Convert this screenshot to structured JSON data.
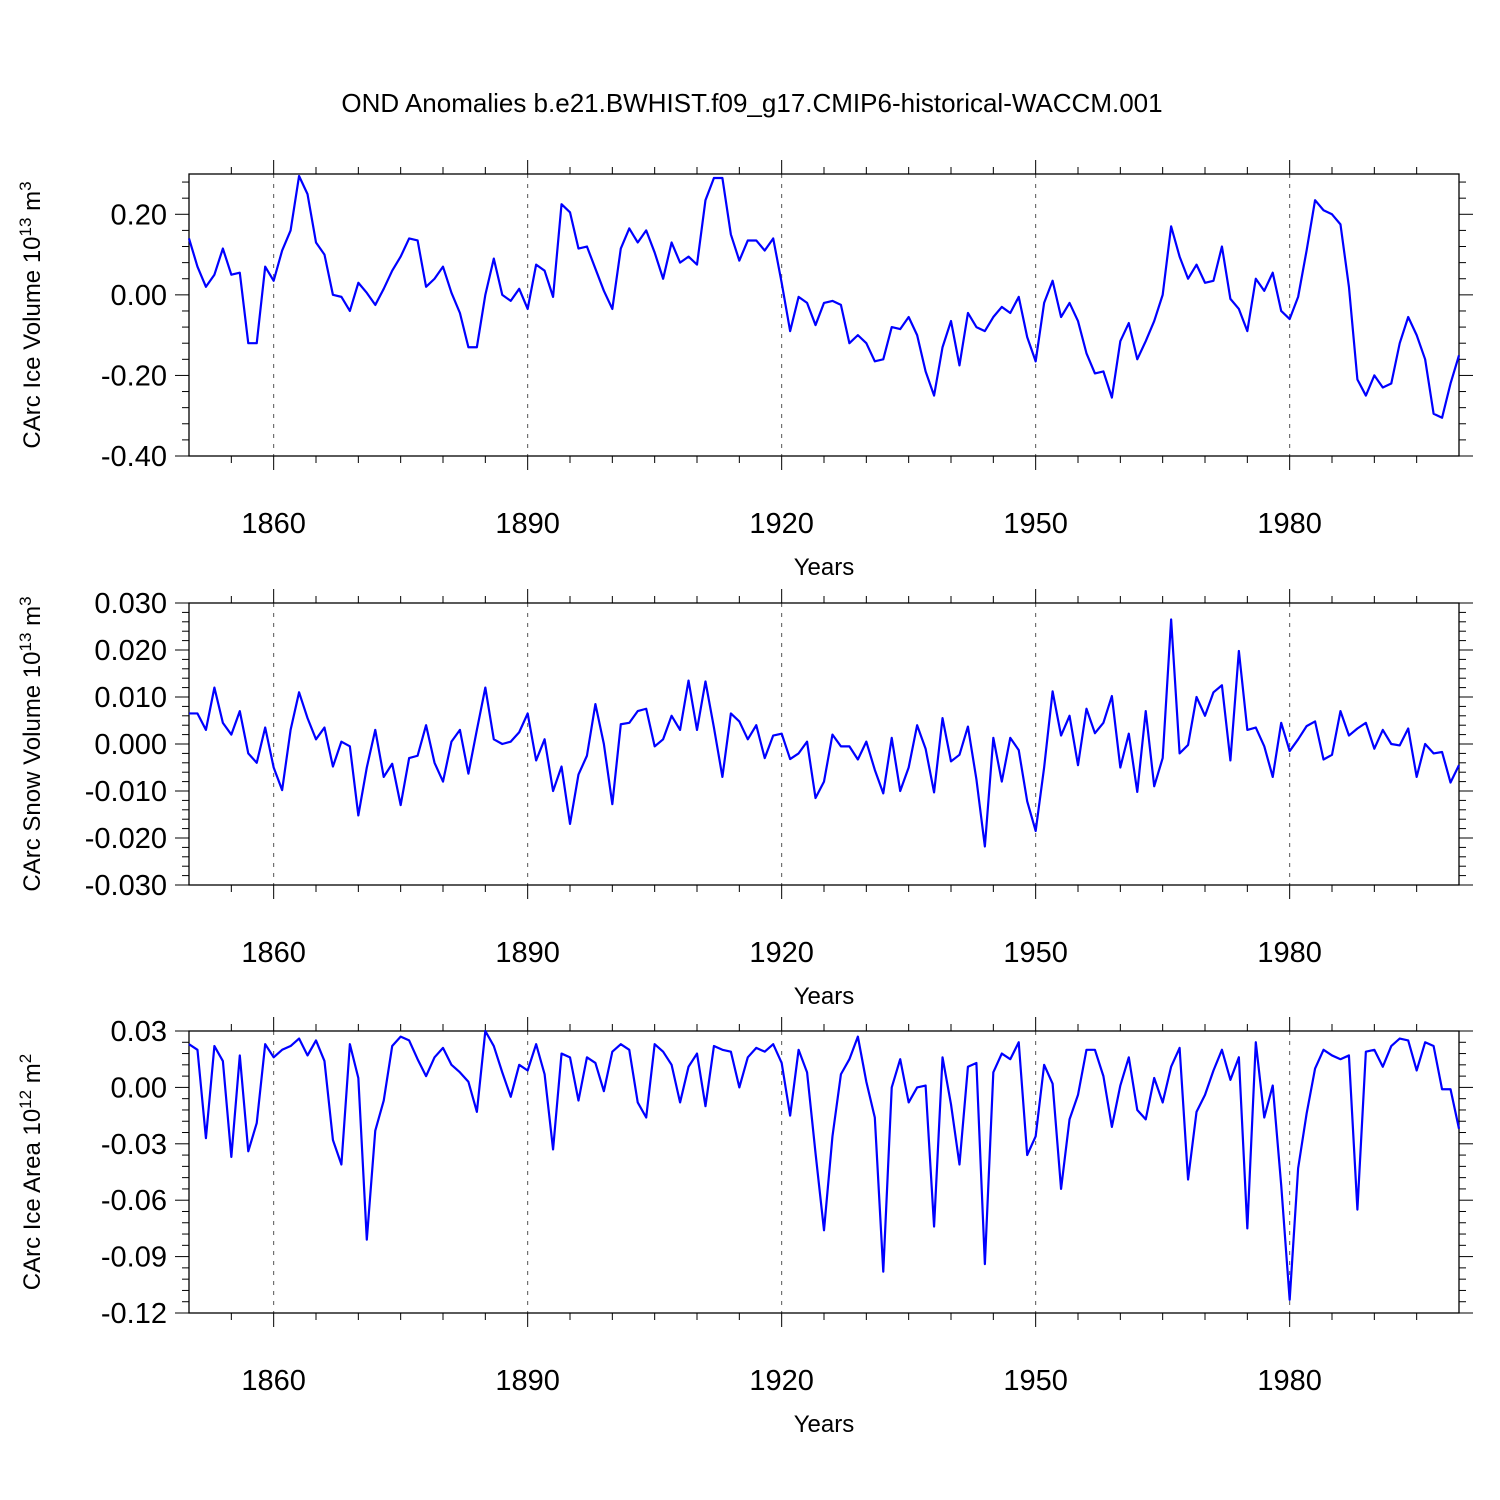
{
  "title": "OND Anomalies b.e21.BWHIST.f09_g17.CMIP6-historical-WACCM.001",
  "chart_data": [
    {
      "type": "line",
      "title": "OND Anomalies b.e21.BWHIST.f09_g17.CMIP6-historical-WACCM.001",
      "xlabel": "Years",
      "ylabel": {
        "base": "CArc Ice Volume 10",
        "exp": "13",
        "unit": " m",
        "unit_exp": "3"
      },
      "xlim": [
        1850,
        2000
      ],
      "ylim": [
        -0.4,
        0.3
      ],
      "yticks": [
        0.2,
        0.0,
        -0.2,
        -0.4
      ],
      "ytick_labels": [
        "0.20",
        "0.00",
        "-0.20",
        "-0.40"
      ],
      "xticks": [
        1860,
        1890,
        1920,
        1950,
        1980
      ],
      "xtick_labels": [
        "1860",
        "1890",
        "1920",
        "1950",
        "1980"
      ],
      "grid": "dashed vertical at x ticks",
      "color": "#0000ff",
      "x_start": 1850,
      "values": [
        0.14,
        0.07,
        0.02,
        0.05,
        0.115,
        0.05,
        0.055,
        -0.12,
        -0.12,
        0.07,
        0.035,
        0.11,
        0.16,
        0.295,
        0.25,
        0.13,
        0.1,
        0.0,
        -0.005,
        -0.04,
        0.03,
        0.005,
        -0.025,
        0.015,
        0.06,
        0.095,
        0.14,
        0.135,
        0.02,
        0.04,
        0.07,
        0.005,
        -0.045,
        -0.13,
        -0.13,
        0.0,
        0.09,
        0.0,
        -0.015,
        0.015,
        -0.035,
        0.075,
        0.06,
        -0.005,
        0.225,
        0.205,
        0.115,
        0.12,
        0.065,
        0.01,
        -0.035,
        0.115,
        0.165,
        0.13,
        0.16,
        0.105,
        0.04,
        0.13,
        0.08,
        0.095,
        0.075,
        0.235,
        0.29,
        0.29,
        0.15,
        0.085,
        0.135,
        0.135,
        0.11,
        0.14,
        0.03,
        -0.09,
        -0.005,
        -0.02,
        -0.075,
        -0.02,
        -0.015,
        -0.025,
        -0.12,
        -0.1,
        -0.12,
        -0.165,
        -0.16,
        -0.08,
        -0.085,
        -0.055,
        -0.1,
        -0.19,
        -0.25,
        -0.13,
        -0.065,
        -0.175,
        -0.045,
        -0.08,
        -0.09,
        -0.055,
        -0.03,
        -0.045,
        -0.005,
        -0.105,
        -0.165,
        -0.02,
        0.035,
        -0.055,
        -0.02,
        -0.065,
        -0.145,
        -0.195,
        -0.19,
        -0.255,
        -0.115,
        -0.07,
        -0.16,
        -0.115,
        -0.065,
        0.0,
        0.17,
        0.095,
        0.04,
        0.075,
        0.03,
        0.035,
        0.12,
        -0.01,
        -0.035,
        -0.09,
        0.04,
        0.01,
        0.055,
        -0.04,
        -0.06,
        -0.005,
        0.11,
        0.235,
        0.21,
        0.2,
        0.175,
        0.02,
        -0.21,
        -0.25,
        -0.2,
        -0.23,
        -0.22,
        -0.12,
        -0.055,
        -0.1,
        -0.16,
        -0.295,
        -0.305,
        -0.22,
        -0.15
      ]
    },
    {
      "type": "line",
      "xlabel": "Years",
      "ylabel": {
        "base": "CArc Snow Volume 10",
        "exp": "13",
        "unit": " m",
        "unit_exp": "3"
      },
      "xlim": [
        1850,
        2000
      ],
      "ylim": [
        -0.03,
        0.03
      ],
      "yticks": [
        0.03,
        0.02,
        0.01,
        0.0,
        -0.01,
        -0.02,
        -0.03
      ],
      "ytick_labels": [
        "0.030",
        "0.020",
        "0.010",
        "0.000",
        "-0.010",
        "-0.020",
        "-0.030"
      ],
      "xticks": [
        1860,
        1890,
        1920,
        1950,
        1980
      ],
      "xtick_labels": [
        "1860",
        "1890",
        "1920",
        "1950",
        "1980"
      ],
      "grid": "dashed vertical at x ticks",
      "color": "#0000ff",
      "x_start": 1850,
      "values": [
        0.0065,
        0.0065,
        0.003,
        0.012,
        0.0045,
        0.002,
        0.007,
        -0.002,
        -0.004,
        0.0035,
        -0.005,
        -0.0098,
        0.003,
        0.011,
        0.0055,
        0.001,
        0.0035,
        -0.0048,
        0.0005,
        -0.0005,
        -0.0152,
        -0.005,
        0.003,
        -0.007,
        -0.0042,
        -0.013,
        -0.003,
        -0.0025,
        0.004,
        -0.004,
        -0.008,
        0.0005,
        0.003,
        -0.0063,
        0.003,
        0.012,
        0.001,
        0.0,
        0.0005,
        0.0025,
        0.0065,
        -0.0035,
        0.001,
        -0.01,
        -0.0048,
        -0.017,
        -0.0065,
        -0.0025,
        0.0085,
        0.0,
        -0.0128,
        0.0042,
        0.0045,
        0.007,
        0.0075,
        -0.0005,
        0.001,
        0.006,
        0.003,
        0.0135,
        0.003,
        0.0133,
        0.0035,
        -0.007,
        0.0065,
        0.0048,
        0.001,
        0.004,
        -0.003,
        0.0018,
        0.0022,
        -0.0032,
        -0.002,
        0.0005,
        -0.0115,
        -0.008,
        0.002,
        -0.0005,
        -0.0005,
        -0.0033,
        0.0005,
        -0.0055,
        -0.0105,
        0.0013,
        -0.01,
        -0.005,
        0.004,
        -0.001,
        -0.0103,
        0.0055,
        -0.0037,
        -0.0023,
        0.0037,
        -0.0075,
        -0.0218,
        0.0013,
        -0.008,
        0.0013,
        -0.0013,
        -0.0122,
        -0.0185,
        -0.005,
        0.0112,
        0.0018,
        0.006,
        -0.0045,
        0.0075,
        0.0023,
        0.0045,
        0.0102,
        -0.005,
        0.0022,
        -0.0102,
        0.007,
        -0.009,
        -0.003,
        0.0265,
        -0.002,
        -0.0002,
        0.01,
        0.006,
        0.011,
        0.0125,
        -0.0035,
        0.0198,
        0.003,
        0.0035,
        -0.0005,
        -0.007,
        0.0045,
        -0.0015,
        0.001,
        0.0038,
        0.0048,
        -0.0033,
        -0.0023,
        0.007,
        0.0018,
        0.0033,
        0.0045,
        -0.001,
        0.003,
        0.0,
        -0.0003,
        0.0033,
        -0.007,
        0.0,
        -0.002,
        -0.0017,
        -0.0082,
        -0.0045
      ]
    },
    {
      "type": "line",
      "xlabel": "Years",
      "ylabel": {
        "base": "CArc Ice Area 10",
        "exp": "12",
        "unit": " m",
        "unit_exp": "2"
      },
      "xlim": [
        1850,
        2000
      ],
      "ylim": [
        -0.12,
        0.03
      ],
      "yticks": [
        0.03,
        0.0,
        -0.03,
        -0.06,
        -0.09,
        -0.12
      ],
      "ytick_labels": [
        "0.03",
        "0.00",
        "-0.03",
        "-0.06",
        "-0.09",
        "-0.12"
      ],
      "xticks": [
        1860,
        1890,
        1920,
        1950,
        1980
      ],
      "xtick_labels": [
        "1860",
        "1890",
        "1920",
        "1950",
        "1980"
      ],
      "grid": "dashed vertical at x ticks",
      "color": "#0000ff",
      "x_start": 1850,
      "values": [
        0.023,
        0.02,
        -0.027,
        0.022,
        0.014,
        -0.037,
        0.017,
        -0.034,
        -0.019,
        0.023,
        0.016,
        0.02,
        0.022,
        0.026,
        0.017,
        0.025,
        0.014,
        -0.028,
        -0.041,
        0.023,
        0.005,
        -0.081,
        -0.023,
        -0.007,
        0.022,
        0.027,
        0.025,
        0.015,
        0.006,
        0.016,
        0.021,
        0.012,
        0.008,
        0.003,
        -0.013,
        0.03,
        0.022,
        0.008,
        -0.005,
        0.012,
        0.009,
        0.023,
        0.007,
        -0.033,
        0.018,
        0.016,
        -0.007,
        0.016,
        0.013,
        -0.002,
        0.019,
        0.023,
        0.02,
        -0.008,
        -0.016,
        0.023,
        0.019,
        0.012,
        -0.008,
        0.011,
        0.018,
        -0.01,
        0.022,
        0.02,
        0.019,
        0.0,
        0.016,
        0.021,
        0.019,
        0.023,
        0.013,
        -0.015,
        0.02,
        0.008,
        -0.035,
        -0.076,
        -0.026,
        0.007,
        0.015,
        0.027,
        0.003,
        -0.016,
        -0.098,
        0.0,
        0.015,
        -0.008,
        0.0,
        0.001,
        -0.074,
        0.016,
        -0.009,
        -0.041,
        0.011,
        0.013,
        -0.094,
        0.008,
        0.018,
        0.015,
        0.024,
        -0.036,
        -0.026,
        0.012,
        0.002,
        -0.054,
        -0.017,
        -0.004,
        0.02,
        0.02,
        0.006,
        -0.021,
        0.001,
        0.016,
        -0.012,
        -0.017,
        0.005,
        -0.008,
        0.011,
        0.021,
        -0.049,
        -0.013,
        -0.004,
        0.009,
        0.02,
        0.004,
        0.016,
        -0.075,
        0.024,
        -0.016,
        0.001,
        -0.052,
        -0.113,
        -0.043,
        -0.014,
        0.01,
        0.02,
        0.017,
        0.015,
        0.017,
        -0.065,
        0.019,
        0.02,
        0.011,
        0.022,
        0.026,
        0.025,
        0.009,
        0.024,
        0.022,
        -0.001,
        -0.001,
        -0.022
      ]
    }
  ]
}
